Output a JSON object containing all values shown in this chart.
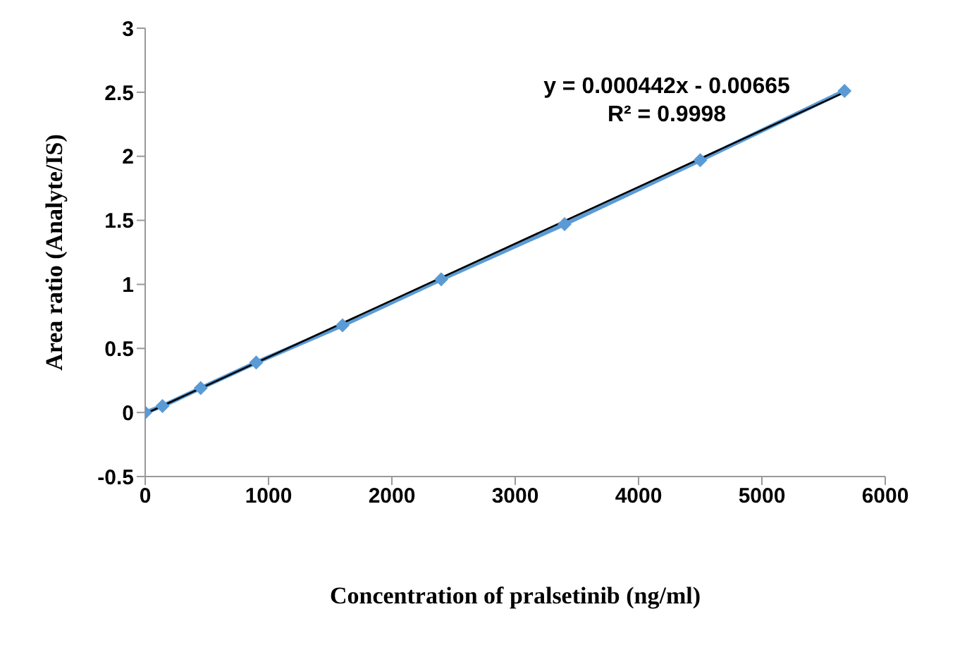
{
  "chart_data": {
    "type": "line",
    "xlabel": "Concentration of pralsetinib  (ng/ml)",
    "ylabel": "Area ratio (Analyte/IS)",
    "xlim": [
      0,
      6000
    ],
    "xticks": [
      0,
      1000,
      2000,
      3000,
      4000,
      5000,
      6000
    ],
    "ylim": [
      -0.5,
      3
    ],
    "yticks": [
      -0.5,
      0,
      0.5,
      1,
      1.5,
      2,
      2.5,
      3
    ],
    "grid": false,
    "annotations": [
      "y = 0.000442x - 0.00665",
      "R² = 0.9998"
    ],
    "series": [
      {
        "color": "#5b9bd5",
        "marker": "diamond",
        "x": [
          0,
          140,
          450,
          900,
          1600,
          2400,
          3400,
          4500,
          5670
        ],
        "values": [
          0,
          0.05,
          0.19,
          0.39,
          0.68,
          1.04,
          1.47,
          1.97,
          2.51
        ]
      },
      {
        "color": "#000000",
        "marker": "none",
        "x": [
          0,
          5670
        ],
        "values": [
          -0.01,
          2.5
        ]
      }
    ]
  }
}
